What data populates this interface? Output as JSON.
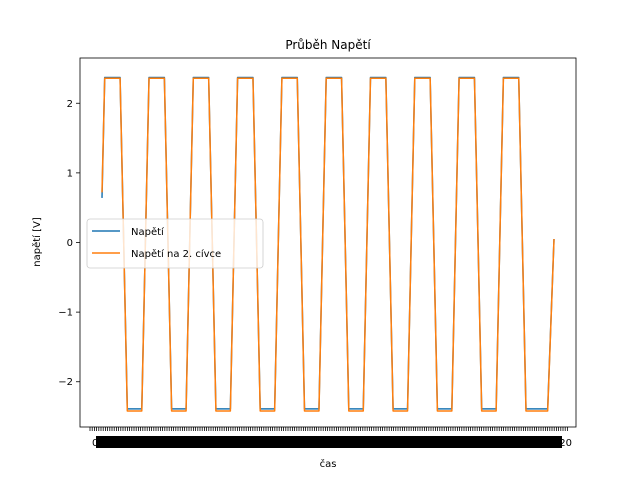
{
  "chart_data": {
    "type": "line",
    "title": "Průběh Napětí",
    "xlabel": "čas",
    "ylabel": "napětí [V]",
    "xlim": [
      0,
      100
    ],
    "ylim": [
      -2.65,
      2.65
    ],
    "yticks": [
      -2,
      -1,
      0,
      1,
      2
    ],
    "ytick_labels": [
      "−2",
      "−1",
      "0",
      "1",
      "2"
    ],
    "xtick_labels_note_left": "0.00",
    "xtick_labels_note_right": "0.20",
    "grid": false,
    "legend": {
      "placement": "center-left"
    },
    "series": [
      {
        "name": "Napětí",
        "color": "#1f77b4",
        "amplitude_high": 2.37,
        "amplitude_low": -2.39,
        "x": [
          0,
          0.6,
          1.2,
          4,
          4.8,
          5.6,
          8.8,
          9.6,
          10.4,
          13.8,
          14.6,
          15.4,
          18.6,
          19.4,
          20.2,
          23.6,
          24.4,
          25.2,
          28.4,
          29.2,
          30,
          33.4,
          34.2,
          35,
          38.2,
          39,
          39.8,
          43.2,
          44,
          44.8,
          48,
          48.8,
          49.6,
          53,
          53.8,
          54.6,
          57.8,
          58.6,
          59.4,
          62.8,
          63.6,
          64.4,
          67.6,
          68.4,
          69.2,
          72.6,
          73.4,
          74.2,
          77.4,
          78.2,
          79,
          82.4,
          83.2,
          84,
          87.2,
          88,
          88.8,
          92.2,
          93,
          93.8,
          97,
          97.8,
          98.6,
          100
        ],
        "y": [
          0.64,
          2.37,
          2.37,
          2.37,
          0,
          -2.39,
          -2.39,
          0,
          2.37,
          2.37,
          0,
          -2.39,
          -2.39,
          0,
          2.37,
          2.37,
          0,
          -2.39,
          -2.39,
          0,
          2.37,
          2.37,
          0,
          -2.39,
          -2.39,
          0,
          2.37,
          2.37,
          0,
          -2.39,
          -2.39,
          0,
          2.37,
          2.37,
          0,
          -2.39,
          -2.39,
          0,
          2.37,
          2.37,
          0,
          -2.39,
          -2.39,
          0,
          2.37,
          2.37,
          0,
          -2.39,
          -2.39,
          0,
          2.37,
          2.37,
          0,
          -2.39,
          -2.39,
          0,
          2.37,
          2.37,
          0,
          -2.39,
          -2.39,
          -2.39,
          -2.39,
          0.05
        ]
      },
      {
        "name": "Napětí na 2. cívce",
        "color": "#ff7f0e",
        "amplitude_high": 2.36,
        "amplitude_low": -2.42,
        "x": [
          0,
          0.6,
          1.2,
          4,
          4.8,
          5.6,
          8.8,
          9.6,
          10.4,
          13.8,
          14.6,
          15.4,
          18.6,
          19.4,
          20.2,
          23.6,
          24.4,
          25.2,
          28.4,
          29.2,
          30,
          33.4,
          34.2,
          35,
          38.2,
          39,
          39.8,
          43.2,
          44,
          44.8,
          48,
          48.8,
          49.6,
          53,
          53.8,
          54.6,
          57.8,
          58.6,
          59.4,
          62.8,
          63.6,
          64.4,
          67.6,
          68.4,
          69.2,
          72.6,
          73.4,
          74.2,
          77.4,
          78.2,
          79,
          82.4,
          83.2,
          84,
          87.2,
          88,
          88.8,
          92.2,
          93,
          93.8,
          97,
          97.8,
          98.6,
          100
        ],
        "y": [
          0.72,
          2.36,
          2.36,
          2.36,
          0,
          -2.42,
          -2.42,
          0,
          2.36,
          2.36,
          0,
          -2.42,
          -2.42,
          0,
          2.36,
          2.36,
          0,
          -2.42,
          -2.42,
          0,
          2.36,
          2.36,
          0,
          -2.42,
          -2.42,
          0,
          2.36,
          2.36,
          0,
          -2.42,
          -2.42,
          0,
          2.36,
          2.36,
          0,
          -2.42,
          -2.42,
          0,
          2.36,
          2.36,
          0,
          -2.42,
          -2.42,
          0,
          2.36,
          2.36,
          0,
          -2.42,
          -2.42,
          0,
          2.36,
          2.36,
          0,
          -2.42,
          -2.42,
          0,
          2.36,
          2.36,
          0,
          -2.42,
          -2.42,
          -2.42,
          -2.42,
          0.05
        ]
      }
    ]
  }
}
